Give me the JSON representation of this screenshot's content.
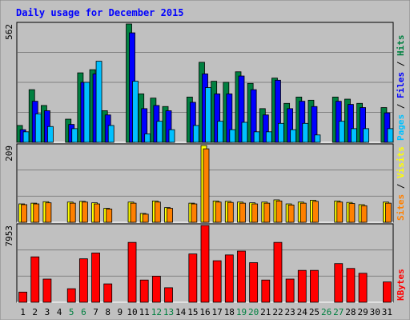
{
  "chart_data": [
    {
      "type": "bar",
      "title": "Daily usage for December 2015",
      "panel": "top",
      "ylim": [
        0,
        562
      ],
      "max_label": "562",
      "right_label": [
        {
          "text": "Pages",
          "color": "#00c0ff"
        },
        {
          "text": " / ",
          "color": "#000000"
        },
        {
          "text": "Files",
          "color": "#0000ff"
        },
        {
          "text": " / ",
          "color": "#000000"
        },
        {
          "text": "Hits",
          "color": "#008040"
        }
      ],
      "series": [
        {
          "name": "Hits",
          "color": "#008040",
          "values": [
            80,
            250,
            175,
            0,
            110,
            330,
            345,
            150,
            0,
            562,
            230,
            210,
            170,
            0,
            215,
            380,
            290,
            285,
            335,
            280,
            160,
            305,
            185,
            215,
            200,
            0,
            215,
            205,
            185,
            0,
            165
          ]
        },
        {
          "name": "Files",
          "color": "#0000ff",
          "values": [
            60,
            195,
            150,
            0,
            85,
            285,
            325,
            130,
            0,
            520,
            160,
            175,
            150,
            0,
            190,
            325,
            230,
            230,
            315,
            250,
            130,
            295,
            160,
            195,
            170,
            0,
            195,
            180,
            165,
            0,
            140
          ]
        },
        {
          "name": "Pages",
          "color": "#00c0ff",
          "values": [
            50,
            135,
            75,
            0,
            65,
            285,
            385,
            80,
            0,
            290,
            40,
            100,
            60,
            0,
            80,
            260,
            100,
            60,
            95,
            50,
            50,
            90,
            60,
            90,
            35,
            0,
            100,
            65,
            65,
            0,
            65
          ]
        }
      ]
    },
    {
      "type": "bar",
      "panel": "middle",
      "ylim": [
        0,
        209
      ],
      "max_label": "209",
      "right_label": [
        {
          "text": "Sites",
          "color": "#ff8000"
        },
        {
          "text": " / ",
          "color": "#000000"
        },
        {
          "text": "Visits",
          "color": "#ffff00"
        }
      ],
      "series": [
        {
          "name": "Visits",
          "color": "#ffff00",
          "values": [
            50,
            52,
            56,
            0,
            55,
            57,
            53,
            38,
            0,
            55,
            24,
            58,
            40,
            0,
            52,
            209,
            58,
            57,
            55,
            53,
            55,
            61,
            50,
            55,
            60,
            0,
            58,
            54,
            48,
            0,
            55
          ]
        },
        {
          "name": "Sites",
          "color": "#ff8000",
          "values": [
            48,
            50,
            53,
            0,
            52,
            55,
            50,
            36,
            0,
            52,
            22,
            55,
            38,
            0,
            50,
            200,
            55,
            54,
            52,
            50,
            52,
            58,
            47,
            52,
            57,
            0,
            55,
            51,
            45,
            0,
            52
          ]
        }
      ]
    },
    {
      "type": "bar",
      "panel": "bottom",
      "ylim": [
        0,
        7953
      ],
      "max_label": "7953",
      "right_label": [
        {
          "text": "KBytes",
          "color": "#ff0000"
        }
      ],
      "series": [
        {
          "name": "KBytes",
          "color": "#ff0000",
          "values": [
            1050,
            4700,
            2400,
            0,
            1400,
            4500,
            5100,
            1900,
            0,
            6200,
            2300,
            2700,
            1500,
            0,
            5000,
            7953,
            4300,
            4900,
            5300,
            4100,
            2300,
            6200,
            2400,
            3300,
            3300,
            0,
            4000,
            3500,
            3000,
            0,
            2100
          ]
        }
      ]
    }
  ],
  "x_axis": {
    "labels": [
      "1",
      "2",
      "3",
      "4",
      "5",
      "6",
      "7",
      "8",
      "9",
      "10",
      "11",
      "12",
      "13",
      "14",
      "15",
      "16",
      "17",
      "18",
      "19",
      "20",
      "21",
      "22",
      "23",
      "24",
      "25",
      "26",
      "27",
      "28",
      "29",
      "30",
      "31"
    ],
    "weekend_days": [
      "5",
      "6",
      "12",
      "13",
      "19",
      "20",
      "26",
      "27"
    ],
    "weekday_color": "#000000",
    "weekend_color": "#008040"
  },
  "colors": {
    "background": "#c0c0c0",
    "title": "#0000ff",
    "grid": "#808080"
  }
}
